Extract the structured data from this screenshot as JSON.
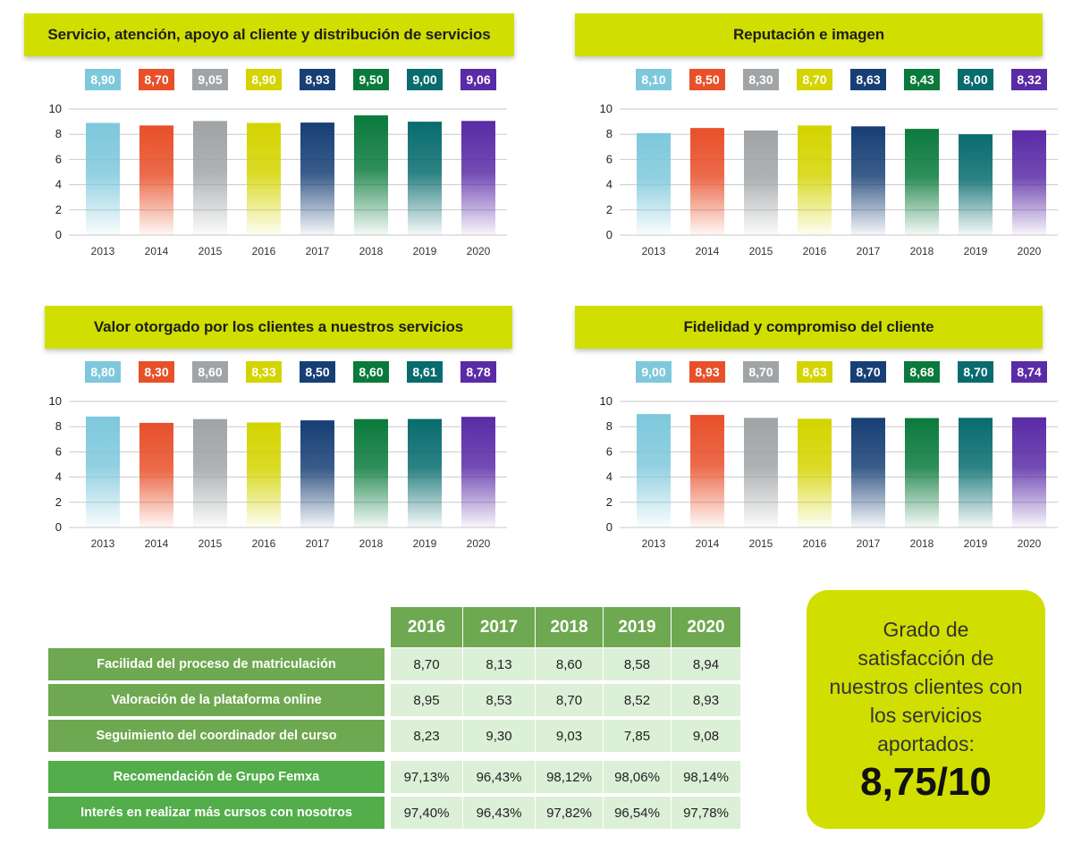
{
  "colors": {
    "title_bg": "#d0df00",
    "series": [
      "#7ec8dc",
      "#e8502a",
      "#a0a4a6",
      "#d4d400",
      "#173f75",
      "#0a7a3c",
      "#086c6e",
      "#5a2ba6"
    ],
    "table_header": "#6ea850",
    "row_label_a": "#6ea850",
    "row_label_b": "#52ad4a",
    "cell_bg": "#dcefd7"
  },
  "chart_data": [
    {
      "type": "bar",
      "title": "Servicio, atención, apoyo al cliente y distribución de servicios",
      "categories": [
        "2013",
        "2014",
        "2015",
        "2016",
        "2017",
        "2018",
        "2019",
        "2020"
      ],
      "values": [
        8.9,
        8.7,
        9.05,
        8.9,
        8.93,
        9.5,
        9.0,
        9.06
      ],
      "labels": [
        "8,90",
        "8,70",
        "9,05",
        "8,90",
        "8,93",
        "9,50",
        "9,00",
        "9,06"
      ],
      "yticks": [
        "0",
        "2",
        "4",
        "6",
        "8",
        "10"
      ],
      "ylim": [
        0,
        10
      ],
      "grid": true
    },
    {
      "type": "bar",
      "title": "Reputación e imagen",
      "categories": [
        "2013",
        "2014",
        "2015",
        "2016",
        "2017",
        "2018",
        "2019",
        "2020"
      ],
      "values": [
        8.1,
        8.5,
        8.3,
        8.7,
        8.63,
        8.43,
        8.0,
        8.32
      ],
      "labels": [
        "8,10",
        "8,50",
        "8,30",
        "8,70",
        "8,63",
        "8,43",
        "8,00",
        "8,32"
      ],
      "yticks": [
        "0",
        "2",
        "4",
        "6",
        "8",
        "10"
      ],
      "ylim": [
        0,
        10
      ],
      "grid": true
    },
    {
      "type": "bar",
      "title": "Valor otorgado por los clientes a nuestros servicios",
      "categories": [
        "2013",
        "2014",
        "2015",
        "2016",
        "2017",
        "2018",
        "2019",
        "2020"
      ],
      "values": [
        8.8,
        8.3,
        8.6,
        8.33,
        8.5,
        8.6,
        8.61,
        8.78
      ],
      "labels": [
        "8,80",
        "8,30",
        "8,60",
        "8,33",
        "8,50",
        "8,60",
        "8,61",
        "8,78"
      ],
      "yticks": [
        "0",
        "2",
        "4",
        "6",
        "8",
        "10"
      ],
      "ylim": [
        0,
        10
      ],
      "grid": true
    },
    {
      "type": "bar",
      "title": "Fidelidad y compromiso del cliente",
      "categories": [
        "2013",
        "2014",
        "2015",
        "2016",
        "2017",
        "2018",
        "2019",
        "2020"
      ],
      "values": [
        9.0,
        8.93,
        8.7,
        8.63,
        8.7,
        8.68,
        8.7,
        8.74
      ],
      "labels": [
        "9,00",
        "8,93",
        "8,70",
        "8,63",
        "8,70",
        "8,68",
        "8,70",
        "8,74"
      ],
      "yticks": [
        "0",
        "2",
        "4",
        "6",
        "8",
        "10"
      ],
      "ylim": [
        0,
        10
      ],
      "grid": true
    },
    {
      "type": "table",
      "columns": [
        "2016",
        "2017",
        "2018",
        "2019",
        "2020"
      ],
      "rows": [
        {
          "label": "Facilidad del proceso de matriculación",
          "values": [
            "8,70",
            "8,13",
            "8,60",
            "8,58",
            "8,94"
          ]
        },
        {
          "label": "Valoración de la plataforma online",
          "values": [
            "8,95",
            "8,53",
            "8,70",
            "8,52",
            "8,93"
          ]
        },
        {
          "label": "Seguimiento del coordinador del curso",
          "values": [
            "8,23",
            "9,30",
            "9,03",
            "7,85",
            "9,08"
          ]
        },
        {
          "label": "Recomendación de Grupo Femxa",
          "values": [
            "97,13%",
            "96,43%",
            "98,12%",
            "98,06%",
            "98,14%"
          ]
        },
        {
          "label": "Interés en realizar más cursos con nosotros",
          "values": [
            "97,40%",
            "96,43%",
            "97,82%",
            "96,54%",
            "97,78%"
          ]
        }
      ]
    }
  ],
  "summary": {
    "text": "Grado de satisfacción de nuestros clientes con los servicios aportados:",
    "score": "8,75/10"
  }
}
